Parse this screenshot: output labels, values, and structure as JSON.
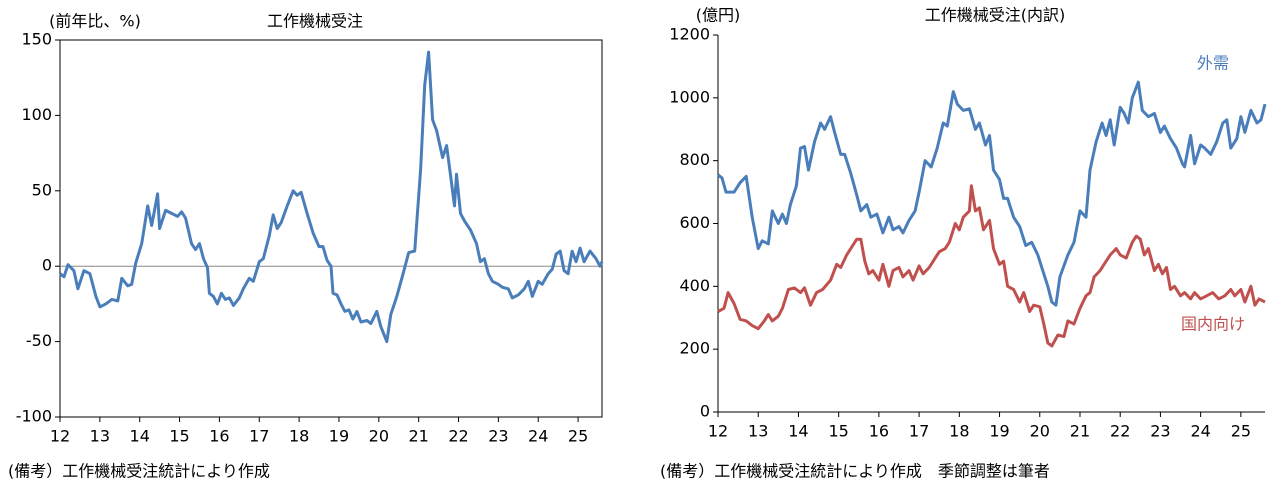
{
  "chart_data": [
    {
      "type": "line",
      "title": "工作機械受注",
      "ylabel": "(前年比、%)",
      "note": "(備考）工作機械受注統計により作成",
      "xlim": [
        12,
        25.6
      ],
      "xticks": [
        12,
        13,
        14,
        15,
        16,
        17,
        18,
        19,
        20,
        21,
        22,
        23,
        24,
        25
      ],
      "ylim": [
        -100,
        150
      ],
      "yticks": [
        -100,
        -50,
        0,
        50,
        100,
        150
      ],
      "frame": true,
      "zero_line": true,
      "series": [
        {
          "color": "#4a7ebb",
          "x": [
            12.0,
            12.1,
            12.2,
            12.35,
            12.45,
            12.6,
            12.75,
            12.9,
            13.0,
            13.15,
            13.3,
            13.45,
            13.55,
            13.7,
            13.8,
            13.9,
            14.05,
            14.2,
            14.3,
            14.45,
            14.5,
            14.65,
            14.8,
            14.95,
            15.05,
            15.15,
            15.3,
            15.4,
            15.5,
            15.6,
            15.7,
            15.75,
            15.85,
            15.95,
            16.05,
            16.15,
            16.25,
            16.35,
            16.5,
            16.6,
            16.75,
            16.85,
            17.0,
            17.1,
            17.25,
            17.35,
            17.45,
            17.55,
            17.7,
            17.85,
            17.95,
            18.05,
            18.2,
            18.35,
            18.5,
            18.6,
            18.7,
            18.8,
            18.85,
            18.95,
            19.05,
            19.15,
            19.25,
            19.35,
            19.45,
            19.55,
            19.7,
            19.8,
            19.95,
            20.05,
            20.2,
            20.3,
            20.45,
            20.6,
            20.75,
            20.9,
            21.05,
            21.15,
            21.25,
            21.35,
            21.45,
            21.6,
            21.7,
            21.8,
            21.9,
            21.95,
            22.05,
            22.15,
            22.3,
            22.45,
            22.55,
            22.65,
            22.75,
            22.85,
            23.0,
            23.1,
            23.25,
            23.35,
            23.5,
            23.65,
            23.75,
            23.85,
            24.0,
            24.1,
            24.25,
            24.35,
            24.45,
            24.55,
            24.65,
            24.75,
            24.85,
            24.95,
            25.05,
            25.15,
            25.3,
            25.45,
            25.55,
            25.6
          ],
          "values": [
            -5,
            -7,
            1,
            -3,
            -15,
            -3,
            -5,
            -20,
            -27,
            -25,
            -22,
            -23,
            -8,
            -13,
            -12,
            2,
            15,
            40,
            27,
            48,
            25,
            37,
            35,
            33,
            36,
            32,
            15,
            11,
            15,
            5,
            -1,
            -18,
            -20,
            -25,
            -18,
            -22,
            -21,
            -26,
            -21,
            -15,
            -8,
            -10,
            3,
            5,
            20,
            34,
            25,
            29,
            40,
            50,
            47,
            49,
            35,
            22,
            13,
            13,
            4,
            0,
            -18,
            -19,
            -25,
            -30,
            -29,
            -35,
            -30,
            -37,
            -36,
            -38,
            -30,
            -40,
            -50,
            -32,
            -20,
            -6,
            9,
            10,
            65,
            120,
            142,
            97,
            90,
            72,
            80,
            60,
            40,
            61,
            35,
            30,
            24,
            15,
            3,
            5,
            -5,
            -10,
            -12,
            -14,
            -15,
            -21,
            -19,
            -15,
            -10,
            -20,
            -10,
            -12,
            -5,
            -2,
            8,
            10,
            -3,
            -5,
            10,
            3,
            12,
            3,
            10,
            5,
            0,
            3
          ]
        }
      ]
    },
    {
      "type": "line",
      "title": "工作機械受注(内訳)",
      "ylabel": "(億円)",
      "note": "(備考）工作機械受注統計により作成　季節調整は筆者",
      "xlim": [
        12,
        25.6
      ],
      "xticks": [
        12,
        13,
        14,
        15,
        16,
        17,
        18,
        19,
        20,
        21,
        22,
        23,
        24,
        25
      ],
      "ylim": [
        0,
        1200
      ],
      "yticks": [
        0,
        200,
        400,
        600,
        800,
        1000,
        1200
      ],
      "frame": false,
      "zero_line": false,
      "series": [
        {
          "name": "外需",
          "color": "#4a7ebb",
          "x": [
            12.0,
            12.1,
            12.2,
            12.4,
            12.55,
            12.7,
            12.85,
            13.0,
            13.1,
            13.25,
            13.35,
            13.5,
            13.6,
            13.7,
            13.8,
            13.95,
            14.05,
            14.15,
            14.25,
            14.4,
            14.55,
            14.65,
            14.8,
            14.9,
            15.05,
            15.15,
            15.3,
            15.45,
            15.55,
            15.7,
            15.8,
            15.95,
            16.1,
            16.25,
            16.35,
            16.5,
            16.6,
            16.75,
            16.9,
            17.0,
            17.15,
            17.3,
            17.45,
            17.6,
            17.7,
            17.85,
            17.95,
            18.1,
            18.25,
            18.4,
            18.5,
            18.65,
            18.75,
            18.85,
            19.0,
            19.1,
            19.2,
            19.35,
            19.5,
            19.65,
            19.8,
            19.95,
            20.05,
            20.2,
            20.3,
            20.4,
            20.5,
            20.7,
            20.85,
            21.0,
            21.15,
            21.25,
            21.4,
            21.55,
            21.65,
            21.75,
            21.85,
            22.0,
            22.1,
            22.2,
            22.3,
            22.45,
            22.55,
            22.7,
            22.85,
            23.0,
            23.1,
            23.25,
            23.4,
            23.55,
            23.6,
            23.75,
            23.85,
            24.0,
            24.1,
            24.25,
            24.4,
            24.55,
            24.65,
            24.75,
            24.9,
            25.0,
            25.1,
            25.25,
            25.4,
            25.5,
            25.6
          ],
          "values": [
            755,
            745,
            700,
            700,
            730,
            750,
            620,
            520,
            545,
            535,
            640,
            600,
            630,
            600,
            660,
            720,
            840,
            845,
            770,
            860,
            920,
            900,
            940,
            890,
            820,
            820,
            760,
            690,
            640,
            660,
            620,
            630,
            570,
            620,
            580,
            590,
            570,
            610,
            640,
            700,
            800,
            780,
            840,
            920,
            910,
            1020,
            980,
            960,
            965,
            900,
            920,
            850,
            880,
            770,
            740,
            680,
            680,
            620,
            590,
            530,
            540,
            500,
            460,
            400,
            350,
            340,
            430,
            500,
            540,
            640,
            620,
            770,
            860,
            920,
            880,
            930,
            850,
            970,
            950,
            920,
            1000,
            1050,
            960,
            940,
            950,
            890,
            910,
            870,
            840,
            790,
            780,
            880,
            790,
            850,
            840,
            820,
            860,
            920,
            930,
            840,
            870,
            940,
            890,
            960,
            920,
            930,
            980
          ]
        },
        {
          "name": "国内向け",
          "color": "#c0504d",
          "x": [
            12.0,
            12.15,
            12.25,
            12.4,
            12.55,
            12.7,
            12.85,
            13.0,
            13.15,
            13.25,
            13.35,
            13.5,
            13.6,
            13.75,
            13.9,
            14.05,
            14.15,
            14.3,
            14.45,
            14.6,
            14.8,
            14.95,
            15.05,
            15.2,
            15.35,
            15.45,
            15.55,
            15.65,
            15.75,
            15.85,
            16.0,
            16.1,
            16.25,
            16.35,
            16.5,
            16.6,
            16.75,
            16.85,
            17.0,
            17.1,
            17.25,
            17.4,
            17.5,
            17.65,
            17.75,
            17.9,
            18.0,
            18.1,
            18.25,
            18.3,
            18.4,
            18.5,
            18.6,
            18.75,
            18.85,
            19.0,
            19.1,
            19.2,
            19.35,
            19.5,
            19.6,
            19.75,
            19.85,
            20.0,
            20.1,
            20.2,
            20.3,
            20.45,
            20.6,
            20.7,
            20.85,
            21.0,
            21.15,
            21.25,
            21.35,
            21.5,
            21.6,
            21.75,
            21.9,
            22.0,
            22.15,
            22.3,
            22.4,
            22.5,
            22.6,
            22.7,
            22.85,
            22.95,
            23.05,
            23.15,
            23.25,
            23.35,
            23.5,
            23.6,
            23.75,
            23.85,
            24.0,
            24.15,
            24.3,
            24.45,
            24.6,
            24.75,
            24.85,
            25.0,
            25.1,
            25.25,
            25.35,
            25.45,
            25.6
          ],
          "values": [
            320,
            330,
            380,
            345,
            295,
            290,
            275,
            265,
            290,
            310,
            290,
            305,
            330,
            390,
            395,
            380,
            395,
            340,
            380,
            390,
            420,
            470,
            460,
            500,
            530,
            550,
            550,
            480,
            440,
            450,
            420,
            470,
            400,
            450,
            460,
            430,
            450,
            420,
            465,
            440,
            460,
            490,
            510,
            520,
            540,
            600,
            580,
            620,
            640,
            720,
            640,
            650,
            580,
            610,
            520,
            470,
            480,
            400,
            390,
            350,
            380,
            320,
            340,
            335,
            280,
            220,
            210,
            245,
            240,
            290,
            280,
            330,
            370,
            380,
            430,
            450,
            470,
            500,
            520,
            500,
            490,
            540,
            560,
            550,
            500,
            520,
            450,
            470,
            440,
            460,
            390,
            400,
            370,
            380,
            360,
            380,
            360,
            370,
            380,
            360,
            370,
            390,
            370,
            390,
            350,
            400,
            340,
            360,
            350
          ]
        }
      ]
    }
  ]
}
